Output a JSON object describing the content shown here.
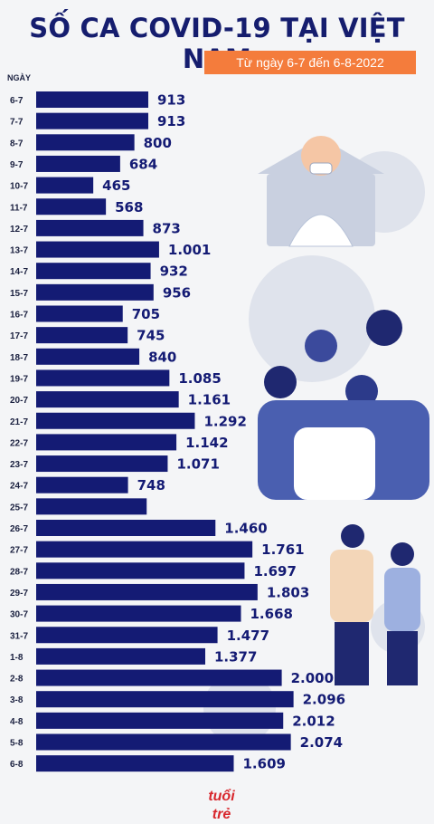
{
  "header": {
    "title": "SỐ CA COVID-19 TẠI VIỆT NAM",
    "subtitle": "Từ ngày 6-7 đến 6-8-2022"
  },
  "logo_text": "tuổi trẻ",
  "colors": {
    "bar": "#141b74",
    "title": "#151d6e",
    "subtitle_bg": "#f47c3c",
    "background": "#f4f5f7"
  },
  "chart_data": {
    "type": "bar",
    "orientation": "horizontal",
    "title": "SỐ CA COVID-19 TẠI VIỆT NAM",
    "subtitle": "Từ ngày 6-7 đến 6-8-2022",
    "ylabel": "NGÀY",
    "xlim": [
      0,
      2200
    ],
    "grid": false,
    "categories": [
      "6-7",
      "7-7",
      "8-7",
      "9-7",
      "10-7",
      "11-7",
      "12-7",
      "13-7",
      "14-7",
      "15-7",
      "16-7",
      "17-7",
      "18-7",
      "19-7",
      "20-7",
      "21-7",
      "22-7",
      "23-7",
      "24-7",
      "25-7",
      "26-7",
      "27-7",
      "28-7",
      "29-7",
      "30-7",
      "31-7",
      "1-8",
      "2-8",
      "3-8",
      "4-8",
      "5-8",
      "6-8"
    ],
    "values": [
      913,
      913,
      800,
      684,
      465,
      568,
      873,
      1001,
      932,
      956,
      705,
      745,
      840,
      1085,
      1161,
      1292,
      1142,
      1071,
      748,
      900,
      1460,
      1761,
      1697,
      1803,
      1668,
      1477,
      1377,
      2000,
      2096,
      2012,
      2074,
      1609
    ],
    "labels": [
      "913",
      "913",
      "800",
      "684",
      "465",
      "568",
      "873",
      "1.001",
      "932",
      "956",
      "705",
      "745",
      "840",
      "1.085",
      "1.161",
      "1.292",
      "1.142",
      "1.071",
      "748",
      "",
      "1.460",
      "1.761",
      "1.697",
      "1.803",
      "1.668",
      "1.477",
      "1.377",
      "2.000",
      "2.096",
      "2.012",
      "2.074",
      "1.609"
    ]
  }
}
